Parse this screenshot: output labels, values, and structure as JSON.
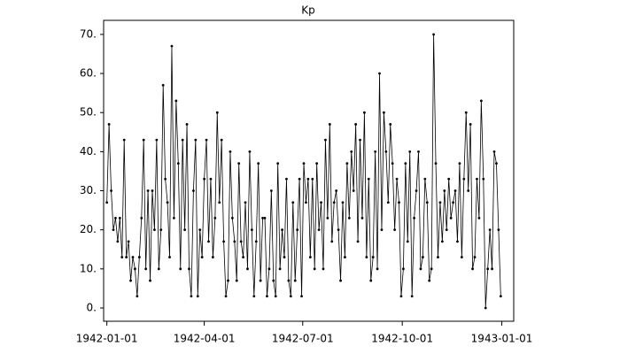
{
  "chart_data": {
    "type": "line",
    "title": "Kp",
    "x": [
      "1942-01-01",
      "1942-01-03",
      "1942-01-05",
      "1942-01-07",
      "1942-01-09",
      "1942-01-11",
      "1942-01-13",
      "1942-01-15",
      "1942-01-17",
      "1942-01-19",
      "1942-01-21",
      "1942-01-23",
      "1942-01-25",
      "1942-01-27",
      "1942-01-29",
      "1942-01-31",
      "1942-02-02",
      "1942-02-04",
      "1942-02-06",
      "1942-02-08",
      "1942-02-10",
      "1942-02-12",
      "1942-02-14",
      "1942-02-16",
      "1942-02-18",
      "1942-02-20",
      "1942-02-22",
      "1942-02-24",
      "1942-02-26",
      "1942-02-28",
      "1942-03-02",
      "1942-03-04",
      "1942-03-06",
      "1942-03-08",
      "1942-03-10",
      "1942-03-12",
      "1942-03-14",
      "1942-03-16",
      "1942-03-18",
      "1942-03-20",
      "1942-03-22",
      "1942-03-24",
      "1942-03-26",
      "1942-03-28",
      "1942-03-30",
      "1942-04-01",
      "1942-04-03",
      "1942-04-05",
      "1942-04-07",
      "1942-04-09",
      "1942-04-11",
      "1942-04-13",
      "1942-04-15",
      "1942-04-17",
      "1942-04-19",
      "1942-04-21",
      "1942-04-23",
      "1942-04-25",
      "1942-04-27",
      "1942-04-29",
      "1942-05-01",
      "1942-05-03",
      "1942-05-05",
      "1942-05-07",
      "1942-05-09",
      "1942-05-11",
      "1942-05-13",
      "1942-05-15",
      "1942-05-17",
      "1942-05-19",
      "1942-05-21",
      "1942-05-23",
      "1942-05-25",
      "1942-05-27",
      "1942-05-29",
      "1942-05-31",
      "1942-06-02",
      "1942-06-04",
      "1942-06-06",
      "1942-06-08",
      "1942-06-10",
      "1942-06-12",
      "1942-06-14",
      "1942-06-16",
      "1942-06-18",
      "1942-06-20",
      "1942-06-22",
      "1942-06-24",
      "1942-06-26",
      "1942-06-28",
      "1942-06-30",
      "1942-07-02",
      "1942-07-04",
      "1942-07-06",
      "1942-07-08",
      "1942-07-10",
      "1942-07-12",
      "1942-07-14",
      "1942-07-16",
      "1942-07-18",
      "1942-07-20",
      "1942-07-22",
      "1942-07-24",
      "1942-07-26",
      "1942-07-28",
      "1942-07-30",
      "1942-08-01",
      "1942-08-03",
      "1942-08-05",
      "1942-08-07",
      "1942-08-09",
      "1942-08-11",
      "1942-08-13",
      "1942-08-15",
      "1942-08-17",
      "1942-08-19",
      "1942-08-21",
      "1942-08-23",
      "1942-08-25",
      "1942-08-27",
      "1942-08-29",
      "1942-08-31",
      "1942-09-02",
      "1942-09-04",
      "1942-09-06",
      "1942-09-08",
      "1942-09-10",
      "1942-09-12",
      "1942-09-14",
      "1942-09-16",
      "1942-09-18",
      "1942-09-20",
      "1942-09-22",
      "1942-09-24",
      "1942-09-26",
      "1942-09-28",
      "1942-09-30",
      "1942-10-02",
      "1942-10-04",
      "1942-10-06",
      "1942-10-08",
      "1942-10-10",
      "1942-10-12",
      "1942-10-14",
      "1942-10-16",
      "1942-10-18",
      "1942-10-20",
      "1942-10-22",
      "1942-10-24",
      "1942-10-26",
      "1942-10-28",
      "1942-10-30",
      "1942-11-01",
      "1942-11-03",
      "1942-11-05",
      "1942-11-07",
      "1942-11-09",
      "1942-11-11",
      "1942-11-13",
      "1942-11-15",
      "1942-11-17",
      "1942-11-19",
      "1942-11-21",
      "1942-11-23",
      "1942-11-25",
      "1942-11-27",
      "1942-11-29",
      "1942-12-01",
      "1942-12-03",
      "1942-12-05",
      "1942-12-07",
      "1942-12-09",
      "1942-12-11",
      "1942-12-13",
      "1942-12-15",
      "1942-12-17",
      "1942-12-19",
      "1942-12-21",
      "1942-12-23",
      "1942-12-25",
      "1942-12-27",
      "1942-12-29",
      "1942-12-31"
    ],
    "series": [
      {
        "name": "Kp",
        "color": "#000000",
        "values": [
          27,
          47,
          30,
          20,
          23,
          17,
          23,
          13,
          43,
          13,
          17,
          7,
          13,
          10,
          3,
          13,
          23,
          43,
          10,
          30,
          7,
          30,
          20,
          43,
          10,
          20,
          57,
          33,
          27,
          13,
          67,
          23,
          53,
          37,
          10,
          43,
          20,
          47,
          10,
          3,
          30,
          43,
          3,
          20,
          13,
          33,
          43,
          17,
          33,
          13,
          23,
          50,
          27,
          43,
          17,
          3,
          7,
          40,
          23,
          17,
          7,
          37,
          17,
          13,
          27,
          10,
          40,
          20,
          3,
          17,
          37,
          7,
          23,
          23,
          3,
          10,
          30,
          7,
          3,
          37,
          10,
          20,
          13,
          33,
          7,
          3,
          27,
          7,
          20,
          33,
          3,
          37,
          27,
          33,
          13,
          33,
          10,
          37,
          20,
          27,
          10,
          43,
          23,
          47,
          17,
          27,
          30,
          20,
          7,
          27,
          13,
          37,
          23,
          40,
          30,
          47,
          17,
          43,
          23,
          50,
          13,
          33,
          7,
          13,
          40,
          10,
          60,
          20,
          50,
          40,
          27,
          47,
          37,
          20,
          33,
          27,
          3,
          10,
          37,
          17,
          40,
          3,
          23,
          30,
          40,
          10,
          13,
          33,
          27,
          7,
          10,
          70,
          37,
          13,
          27,
          17,
          30,
          20,
          33,
          23,
          27,
          30,
          17,
          37,
          13,
          33,
          50,
          30,
          47,
          10,
          13,
          33,
          23,
          53,
          33,
          0,
          10,
          20,
          10,
          40,
          37,
          20,
          3
        ]
      }
    ],
    "xlim": [
      "1941-12-29",
      "1943-01-12"
    ],
    "xticks": [
      "1942-01-01",
      "1942-04-01",
      "1942-07-01",
      "1942-10-01",
      "1943-01-01"
    ],
    "ylim": [
      -3.4,
      73.6
    ],
    "yticks": [
      {
        "value": 0,
        "label": "0."
      },
      {
        "value": 10,
        "label": "10."
      },
      {
        "value": 20,
        "label": "20."
      },
      {
        "value": 30,
        "label": "30."
      },
      {
        "value": 40,
        "label": "40."
      },
      {
        "value": 50,
        "label": "50."
      },
      {
        "value": 60,
        "label": "60."
      },
      {
        "value": 70,
        "label": "70."
      }
    ]
  }
}
